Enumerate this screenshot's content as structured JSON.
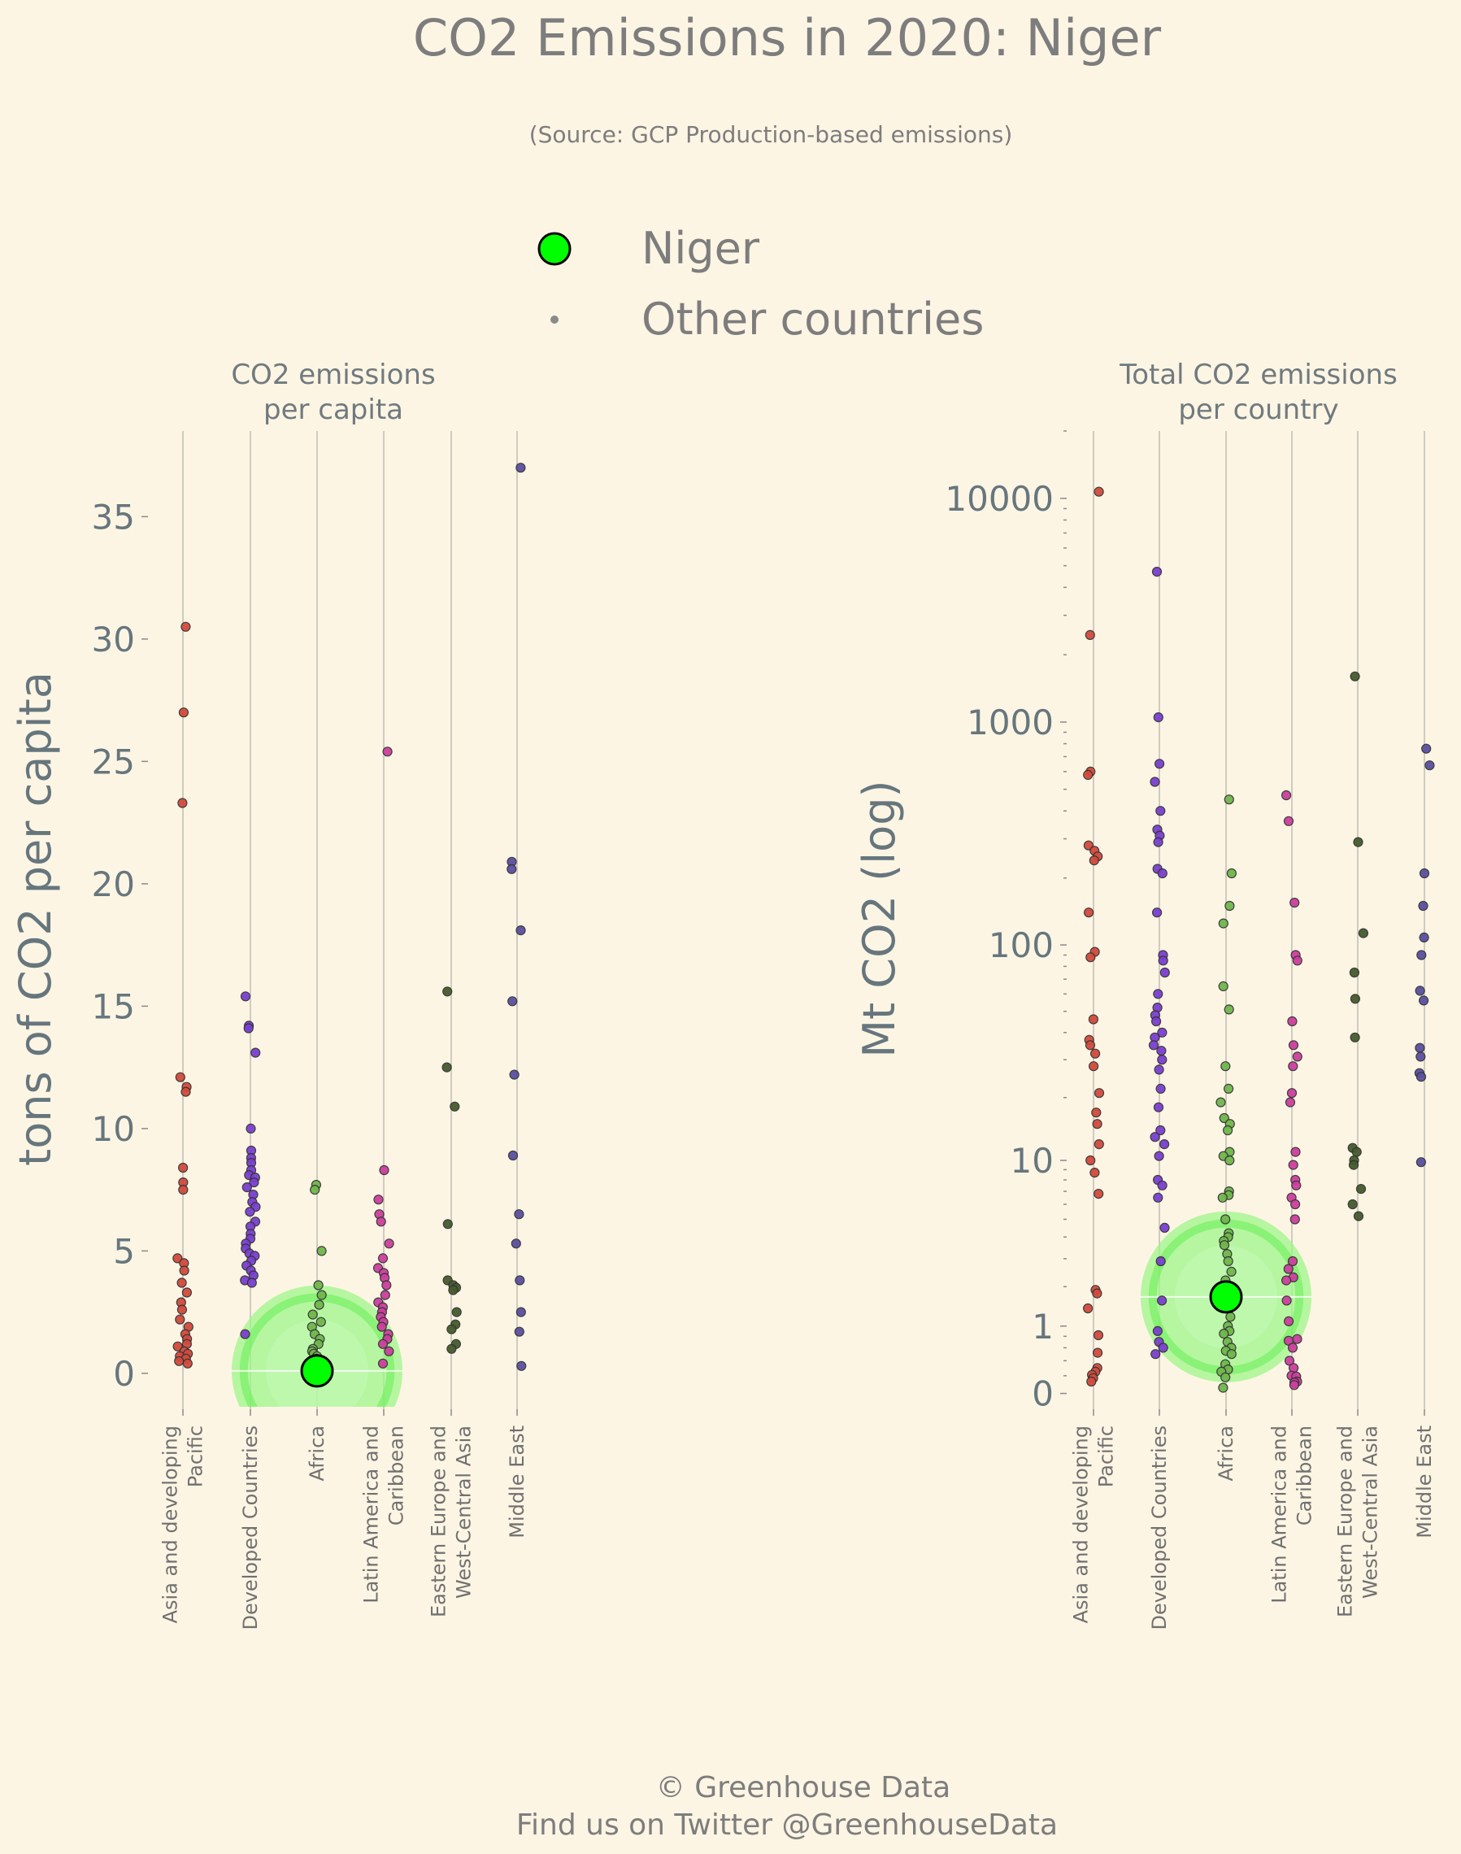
{
  "title": "CO2 Emissions in 2020: Niger",
  "subtitle": "(Source: GCP Production-based emissions)",
  "legend": {
    "highlight": "Niger",
    "others": "Other countries"
  },
  "footer": {
    "line1": "© Greenhouse Data",
    "line2": "Find us on Twitter @GreenhouseData"
  },
  "colors": {
    "background": "#fdf5e4",
    "highlight": "#00ff00",
    "Asia and developing Pacific": "#d24a3c",
    "Developed Countries": "#7a3fd0",
    "Africa": "#6fb64c",
    "Latin America and Caribbean": "#cc3f9e",
    "Eastern Europe and West-Central Asia": "#445c2c",
    "Middle East": "#5a4fa0"
  },
  "chart_data": [
    {
      "type": "scatter",
      "panel_title": [
        "CO2 emissions",
        "per capita"
      ],
      "ylabel": "tons of CO2 per capita",
      "ylim": [
        -1.2,
        38.5
      ],
      "yticks": [
        "0",
        "5",
        "10",
        "15",
        "20",
        "25",
        "30",
        "35"
      ],
      "categories": [
        [
          "Asia and developing",
          "Pacific"
        ],
        [
          "Developed Countries"
        ],
        [
          "Africa"
        ],
        [
          "Latin America and",
          "Caribbean"
        ],
        [
          "Eastern Europe and",
          "West-Central Asia"
        ],
        [
          "Middle East"
        ]
      ],
      "highlight": {
        "name": "Niger",
        "category": 2,
        "value": 0.1
      },
      "series": [
        {
          "category": "Asia and developing Pacific",
          "values": [
            30.5,
            27.0,
            23.3,
            12.1,
            11.7,
            11.5,
            8.4,
            7.8,
            7.5,
            4.7,
            4.5,
            4.2,
            3.7,
            3.3,
            2.9,
            2.6,
            2.2,
            1.9,
            1.6,
            1.4,
            1.2,
            1.1,
            0.9,
            0.8,
            0.7,
            0.6,
            0.5,
            0.4
          ]
        },
        {
          "category": "Developed Countries",
          "values": [
            15.4,
            14.2,
            14.1,
            13.1,
            10.0,
            9.1,
            8.8,
            8.6,
            8.3,
            8.1,
            8.0,
            7.8,
            7.6,
            7.3,
            7.0,
            6.8,
            6.6,
            6.2,
            6.0,
            5.7,
            5.5,
            5.3,
            5.1,
            4.9,
            4.8,
            4.6,
            4.4,
            4.2,
            4.0,
            3.8,
            3.7,
            1.6
          ]
        },
        {
          "category": "Africa",
          "values": [
            7.7,
            7.5,
            5.0,
            3.6,
            3.2,
            2.8,
            2.4,
            2.1,
            1.9,
            1.6,
            1.4,
            1.2,
            1.0,
            0.9,
            0.8,
            0.7,
            0.6,
            0.5,
            0.4,
            0.3,
            0.3,
            0.2,
            0.2,
            0.1
          ]
        },
        {
          "category": "Latin America and Caribbean",
          "values": [
            25.4,
            8.3,
            7.1,
            6.5,
            6.2,
            5.3,
            4.7,
            4.3,
            4.1,
            3.9,
            3.6,
            3.2,
            2.9,
            2.7,
            2.5,
            2.3,
            2.1,
            1.9,
            1.6,
            1.4,
            1.2,
            0.9,
            0.4
          ]
        },
        {
          "category": "Eastern Europe and West-Central Asia",
          "values": [
            15.6,
            12.5,
            10.9,
            6.1,
            3.8,
            3.6,
            3.5,
            3.4,
            2.5,
            2.0,
            1.8,
            1.2,
            1.0
          ]
        },
        {
          "category": "Middle East",
          "values": [
            37.0,
            20.9,
            20.6,
            18.1,
            15.2,
            12.2,
            8.9,
            6.5,
            5.3,
            3.8,
            2.5,
            1.7,
            0.3
          ]
        }
      ]
    },
    {
      "type": "scatter",
      "panel_title": [
        "Total CO2 emissions",
        "per country"
      ],
      "ylabel": "Mt CO2 (log)",
      "yscale": "symlog",
      "ylim": [
        -0.1,
        20000
      ],
      "yticks": [
        "0",
        "1",
        "10",
        "100",
        "1000",
        "10000"
      ],
      "categories": [
        [
          "Asia and developing",
          "Pacific"
        ],
        [
          "Developed Countries"
        ],
        [
          "Africa"
        ],
        [
          "Latin America and",
          "Caribbean"
        ],
        [
          "Eastern Europe and",
          "West-Central Asia"
        ],
        [
          "Middle East"
        ]
      ],
      "highlight": {
        "name": "Niger",
        "category": 2,
        "value": 1.7
      },
      "series": [
        {
          "category": "Asia and developing Pacific",
          "values": [
            10700,
            2450,
            600,
            580,
            280,
            265,
            250,
            240,
            140,
            93,
            88,
            46,
            37,
            35,
            32,
            28,
            21,
            17,
            15,
            12,
            10,
            8.7,
            6.8,
            1.9,
            1.8,
            1.4,
            0.82,
            0.52,
            0.3,
            0.25,
            0.21,
            0.17,
            0.13
          ]
        },
        {
          "category": "Developed Countries",
          "values": [
            4700,
            1050,
            650,
            540,
            400,
            330,
            310,
            290,
            220,
            210,
            140,
            90,
            85,
            75,
            60,
            52,
            48,
            45,
            40,
            38,
            35,
            33,
            30,
            27,
            22,
            18,
            14,
            13,
            12,
            10.5,
            8,
            7.5,
            6.5,
            4.5,
            2.9,
            1.6,
            0.9,
            0.7,
            0.6,
            0.5
          ]
        },
        {
          "category": "Africa",
          "values": [
            450,
            210,
            150,
            125,
            65,
            51,
            28,
            22,
            19,
            16,
            15,
            14,
            11,
            10.5,
            10,
            7,
            6.7,
            6.5,
            5,
            4.2,
            4.0,
            3.8,
            3.6,
            3.2,
            2.9,
            2.5,
            2.2,
            2.0,
            1.8,
            1.5,
            1.2,
            1.0,
            0.9,
            0.85,
            0.7,
            0.6,
            0.55,
            0.5,
            0.35,
            0.28,
            0.25,
            0.18,
            0.06
          ]
        },
        {
          "category": "Latin America and Caribbean",
          "values": [
            470,
            360,
            155,
            90,
            85,
            45,
            35,
            31,
            28,
            21,
            19,
            11,
            9.5,
            8,
            7.5,
            6.5,
            6,
            5,
            2.9,
            2.6,
            2.3,
            2.2,
            1.6,
            1.1,
            0.75,
            0.72,
            0.6,
            0.4,
            0.3,
            0.2,
            0.19,
            0.13,
            0.12,
            0.09
          ]
        },
        {
          "category": "Eastern Europe and West-Central Asia",
          "values": [
            1600,
            290,
            113,
            75,
            57,
            38,
            11.5,
            11,
            10,
            9.5,
            7.2,
            6,
            5.2
          ]
        },
        {
          "category": "Middle East",
          "values": [
            760,
            640,
            210,
            150,
            108,
            90,
            62,
            56,
            34,
            31,
            26,
            25,
            9.8
          ]
        }
      ]
    }
  ]
}
